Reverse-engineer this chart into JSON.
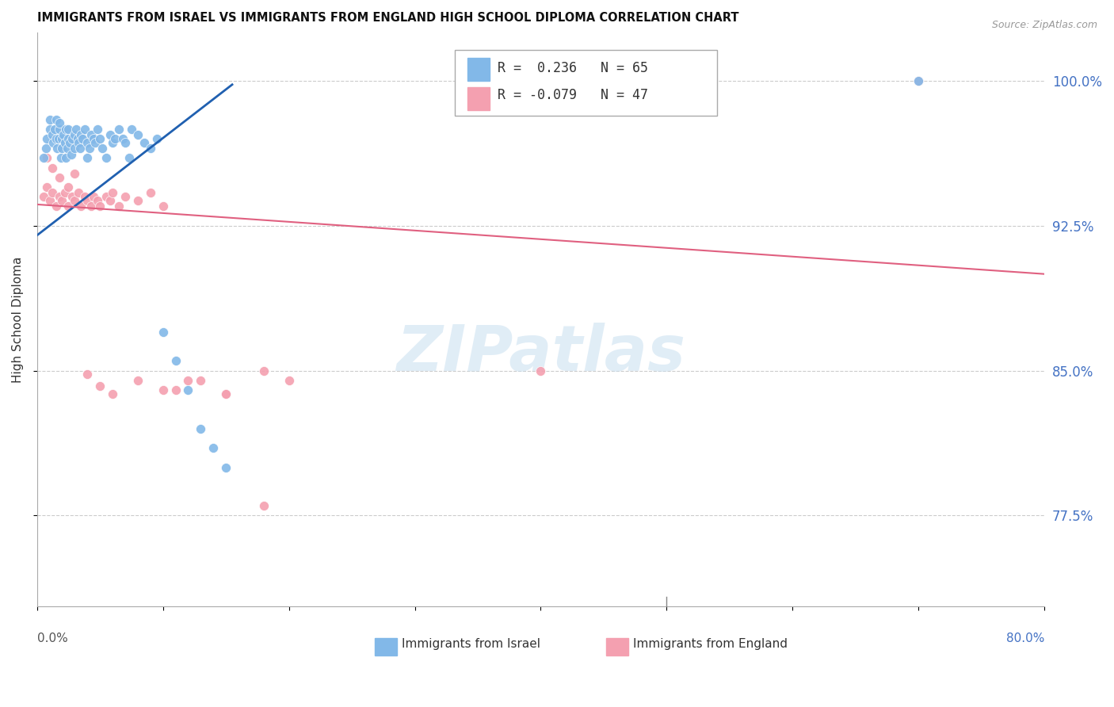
{
  "title": "IMMIGRANTS FROM ISRAEL VS IMMIGRANTS FROM ENGLAND HIGH SCHOOL DIPLOMA CORRELATION CHART",
  "source": "Source: ZipAtlas.com",
  "ylabel": "High School Diploma",
  "xlim": [
    0.0,
    0.8
  ],
  "ylim": [
    0.728,
    1.025
  ],
  "ytick_vals": [
    0.775,
    0.85,
    0.925,
    1.0
  ],
  "ytick_labels": [
    "77.5%",
    "85.0%",
    "92.5%",
    "100.0%"
  ],
  "legend_line1": "R =  0.236   N = 65",
  "legend_line2": "R = -0.079   N = 47",
  "color_israel": "#82b8e8",
  "color_england": "#f4a0b0",
  "trendline_israel_color": "#2060b0",
  "trendline_england_color": "#e06080",
  "israel_trendline": [
    [
      0.0,
      0.155
    ],
    [
      0.92,
      0.998
    ]
  ],
  "england_trendline": [
    [
      0.0,
      0.8
    ],
    [
      0.936,
      0.9
    ]
  ],
  "watermark_text": "ZIPatlas",
  "israel_x": [
    0.005,
    0.007,
    0.008,
    0.01,
    0.01,
    0.012,
    0.013,
    0.014,
    0.015,
    0.015,
    0.016,
    0.017,
    0.018,
    0.018,
    0.019,
    0.02,
    0.02,
    0.021,
    0.022,
    0.023,
    0.023,
    0.024,
    0.025,
    0.025,
    0.026,
    0.027,
    0.028,
    0.03,
    0.03,
    0.031,
    0.032,
    0.033,
    0.034,
    0.035,
    0.036,
    0.038,
    0.04,
    0.04,
    0.042,
    0.043,
    0.045,
    0.046,
    0.048,
    0.05,
    0.052,
    0.055,
    0.058,
    0.06,
    0.062,
    0.065,
    0.068,
    0.07,
    0.073,
    0.075,
    0.08,
    0.085,
    0.09,
    0.095,
    0.1,
    0.11,
    0.12,
    0.13,
    0.14,
    0.15,
    0.7
  ],
  "israel_y": [
    0.96,
    0.965,
    0.97,
    0.975,
    0.98,
    0.972,
    0.968,
    0.975,
    0.97,
    0.98,
    0.965,
    0.97,
    0.975,
    0.978,
    0.96,
    0.97,
    0.965,
    0.972,
    0.968,
    0.975,
    0.96,
    0.965,
    0.97,
    0.975,
    0.968,
    0.962,
    0.97,
    0.965,
    0.972,
    0.975,
    0.97,
    0.968,
    0.965,
    0.972,
    0.97,
    0.975,
    0.968,
    0.96,
    0.965,
    0.972,
    0.97,
    0.968,
    0.975,
    0.97,
    0.965,
    0.96,
    0.972,
    0.968,
    0.97,
    0.975,
    0.97,
    0.968,
    0.96,
    0.975,
    0.972,
    0.968,
    0.965,
    0.97,
    0.87,
    0.855,
    0.84,
    0.82,
    0.81,
    0.8,
    1.0
  ],
  "england_x": [
    0.005,
    0.008,
    0.01,
    0.012,
    0.015,
    0.018,
    0.02,
    0.022,
    0.025,
    0.028,
    0.03,
    0.033,
    0.035,
    0.038,
    0.04,
    0.043,
    0.045,
    0.048,
    0.05,
    0.055,
    0.058,
    0.06,
    0.065,
    0.07,
    0.08,
    0.09,
    0.1,
    0.11,
    0.13,
    0.15,
    0.008,
    0.012,
    0.018,
    0.025,
    0.03,
    0.04,
    0.05,
    0.06,
    0.08,
    0.1,
    0.12,
    0.15,
    0.18,
    0.2,
    0.18,
    0.4,
    0.7
  ],
  "england_y": [
    0.94,
    0.945,
    0.938,
    0.942,
    0.935,
    0.94,
    0.938,
    0.942,
    0.935,
    0.94,
    0.938,
    0.942,
    0.935,
    0.94,
    0.938,
    0.935,
    0.94,
    0.938,
    0.935,
    0.94,
    0.938,
    0.942,
    0.935,
    0.94,
    0.938,
    0.942,
    0.935,
    0.84,
    0.845,
    0.838,
    0.96,
    0.955,
    0.95,
    0.945,
    0.952,
    0.848,
    0.842,
    0.838,
    0.845,
    0.84,
    0.845,
    0.838,
    0.78,
    0.845,
    0.85,
    0.85,
    1.0
  ]
}
